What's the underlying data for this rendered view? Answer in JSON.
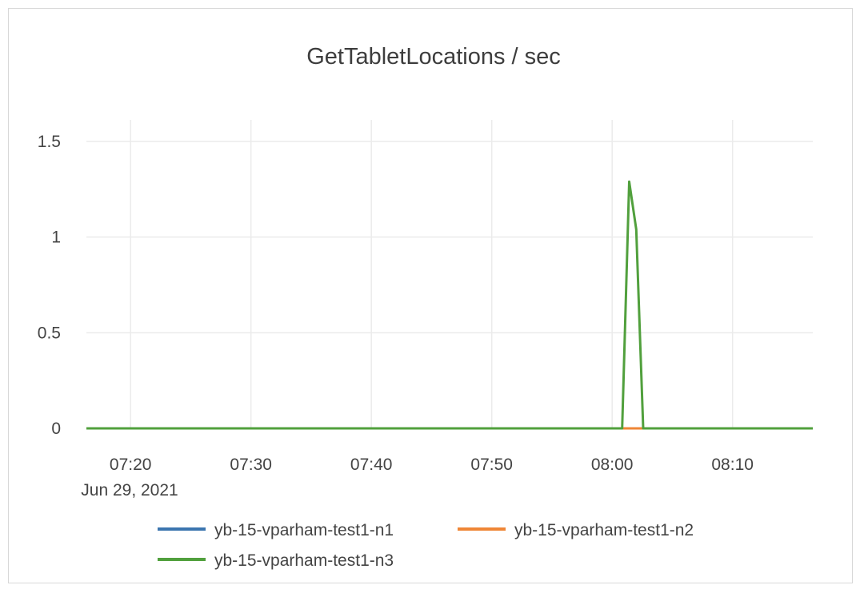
{
  "chart_data": {
    "type": "line",
    "title": "GetTabletLocations / sec",
    "xlabel": "",
    "ylabel": "",
    "xlim": [
      "07:16:20",
      "08:16:40"
    ],
    "ylim": [
      0,
      1.6
    ],
    "x_ticks": [
      "07:20",
      "07:30",
      "07:40",
      "07:50",
      "08:00",
      "08:10"
    ],
    "x_date_label": "Jun 29, 2021",
    "y_ticks": [
      0,
      0.5,
      1,
      1.5
    ],
    "y_tick_labels": [
      "0",
      "0.5",
      "1",
      "1.5"
    ],
    "grid": true,
    "legend_position": "bottom",
    "series": [
      {
        "name": "yb-15-vparham-test1-n1",
        "color": "#3b75af",
        "points": [
          [
            "07:16:20",
            0
          ],
          [
            "08:16:40",
            0
          ]
        ]
      },
      {
        "name": "yb-15-vparham-test1-n2",
        "color": "#ef8636",
        "points": [
          [
            "07:16:20",
            0
          ],
          [
            "08:16:40",
            0
          ]
        ]
      },
      {
        "name": "yb-15-vparham-test1-n3",
        "color": "#51a03d",
        "points": [
          [
            "07:16:20",
            0
          ],
          [
            "08:00:50",
            0
          ],
          [
            "08:01:25",
            1.29
          ],
          [
            "08:02:00",
            1.04
          ],
          [
            "08:02:35",
            0
          ],
          [
            "08:16:40",
            0
          ]
        ]
      }
    ]
  }
}
